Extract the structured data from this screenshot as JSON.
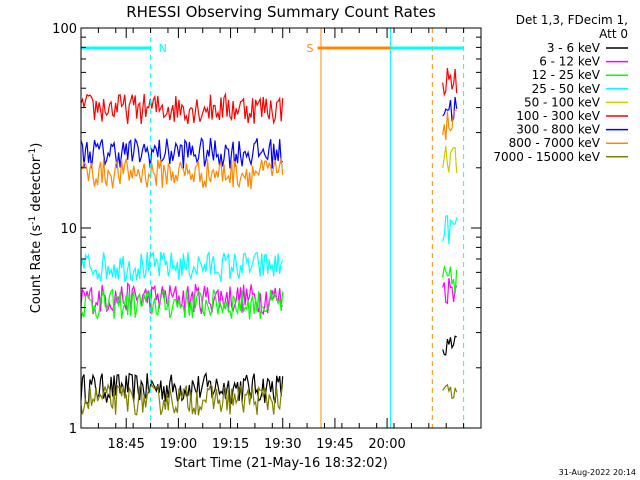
{
  "chart_data": {
    "type": "line",
    "title": "RHESSI Observing Summary Count Rates",
    "xlabel": "Start Time (21-May-16 18:32:02)",
    "ylabel_main": "Count Rate (s",
    "ylabel_sup1": "-1",
    "ylabel_mid": " detector",
    "ylabel_sup2": "-1",
    "ylabel_end": ")",
    "y_scale": "log",
    "ylim": [
      1,
      100
    ],
    "xlim_minutes": [
      0,
      115
    ],
    "x_ticks": [
      {
        "minute": 13,
        "label": "18:45"
      },
      {
        "minute": 28,
        "label": "19:00"
      },
      {
        "minute": 43,
        "label": "19:15"
      },
      {
        "minute": 58,
        "label": "19:30"
      },
      {
        "minute": 73,
        "label": "19:45"
      },
      {
        "minute": 88,
        "label": "20:00"
      }
    ],
    "y_ticks": [
      {
        "value": 1,
        "label": "1"
      },
      {
        "value": 10,
        "label": "10"
      },
      {
        "value": 100,
        "label": "100"
      }
    ],
    "legend_header": [
      "Det 1,3, FDecim 1,",
      "Att 0"
    ],
    "legend_position": "right",
    "series": [
      {
        "name": "3 - 6 keV",
        "color": "#000000",
        "segments": [
          [
            0,
            58,
            1.6
          ],
          [
            104,
            108,
            2.5
          ]
        ]
      },
      {
        "name": "6 - 12 keV",
        "color": "#ff00ff",
        "segments": [
          [
            0,
            58,
            4.5
          ],
          [
            104,
            108,
            5.0
          ]
        ]
      },
      {
        "name": "12 - 25 keV",
        "color": "#00ff00",
        "segments": [
          [
            0,
            58,
            4.2
          ],
          [
            104,
            108,
            5.5
          ]
        ]
      },
      {
        "name": "25 - 50 keV",
        "color": "#00ffff",
        "segments": [
          [
            0,
            58,
            6.5
          ],
          [
            104,
            108,
            10.0
          ]
        ]
      },
      {
        "name": "50 - 100 keV",
        "color": "#cccc00",
        "segments": [
          [
            104,
            108,
            22.0
          ]
        ]
      },
      {
        "name": "100 - 300 keV",
        "color": "#ff0000",
        "segments": [
          [
            0,
            58,
            40.0
          ],
          [
            104,
            108,
            55.0
          ]
        ]
      },
      {
        "name": "300 - 800 keV",
        "color": "#0000ff",
        "segments": [
          [
            0,
            58,
            24.0
          ],
          [
            104,
            108,
            40.0
          ]
        ]
      },
      {
        "name": "800 - 7000 keV",
        "color": "#ff8800",
        "segments": [
          [
            0,
            58,
            19.0
          ],
          [
            104,
            108,
            33.0
          ]
        ]
      },
      {
        "name": "7000 - 15000 keV",
        "color": "#808000",
        "segments": [
          [
            0,
            58,
            1.4
          ],
          [
            104,
            108,
            1.5
          ]
        ]
      }
    ],
    "annotations": [
      {
        "label": "N",
        "color": "#00ffff",
        "bar_minutes": [
          0,
          20
        ],
        "line_minute": 20
      },
      {
        "label": "S",
        "color": "#ff8800",
        "bar_minutes": [
          68,
          101
        ],
        "line_minute": 101
      }
    ],
    "extra_bar": {
      "color": "#00ffff",
      "minutes": [
        89,
        110
      ]
    },
    "vertical_lines": [
      {
        "minute": 20,
        "color": "#00ffff",
        "dashed": true
      },
      {
        "minute": 69,
        "color": "#ff8800",
        "dashed": false
      },
      {
        "minute": 89,
        "color": "#00ffff",
        "dashed": false
      },
      {
        "minute": 101,
        "color": "#ff8800",
        "dashed": true
      },
      {
        "minute": 110,
        "color": "#00ffff",
        "dashed": true
      }
    ]
  },
  "footer_date": "31-Aug-2022 20:14"
}
